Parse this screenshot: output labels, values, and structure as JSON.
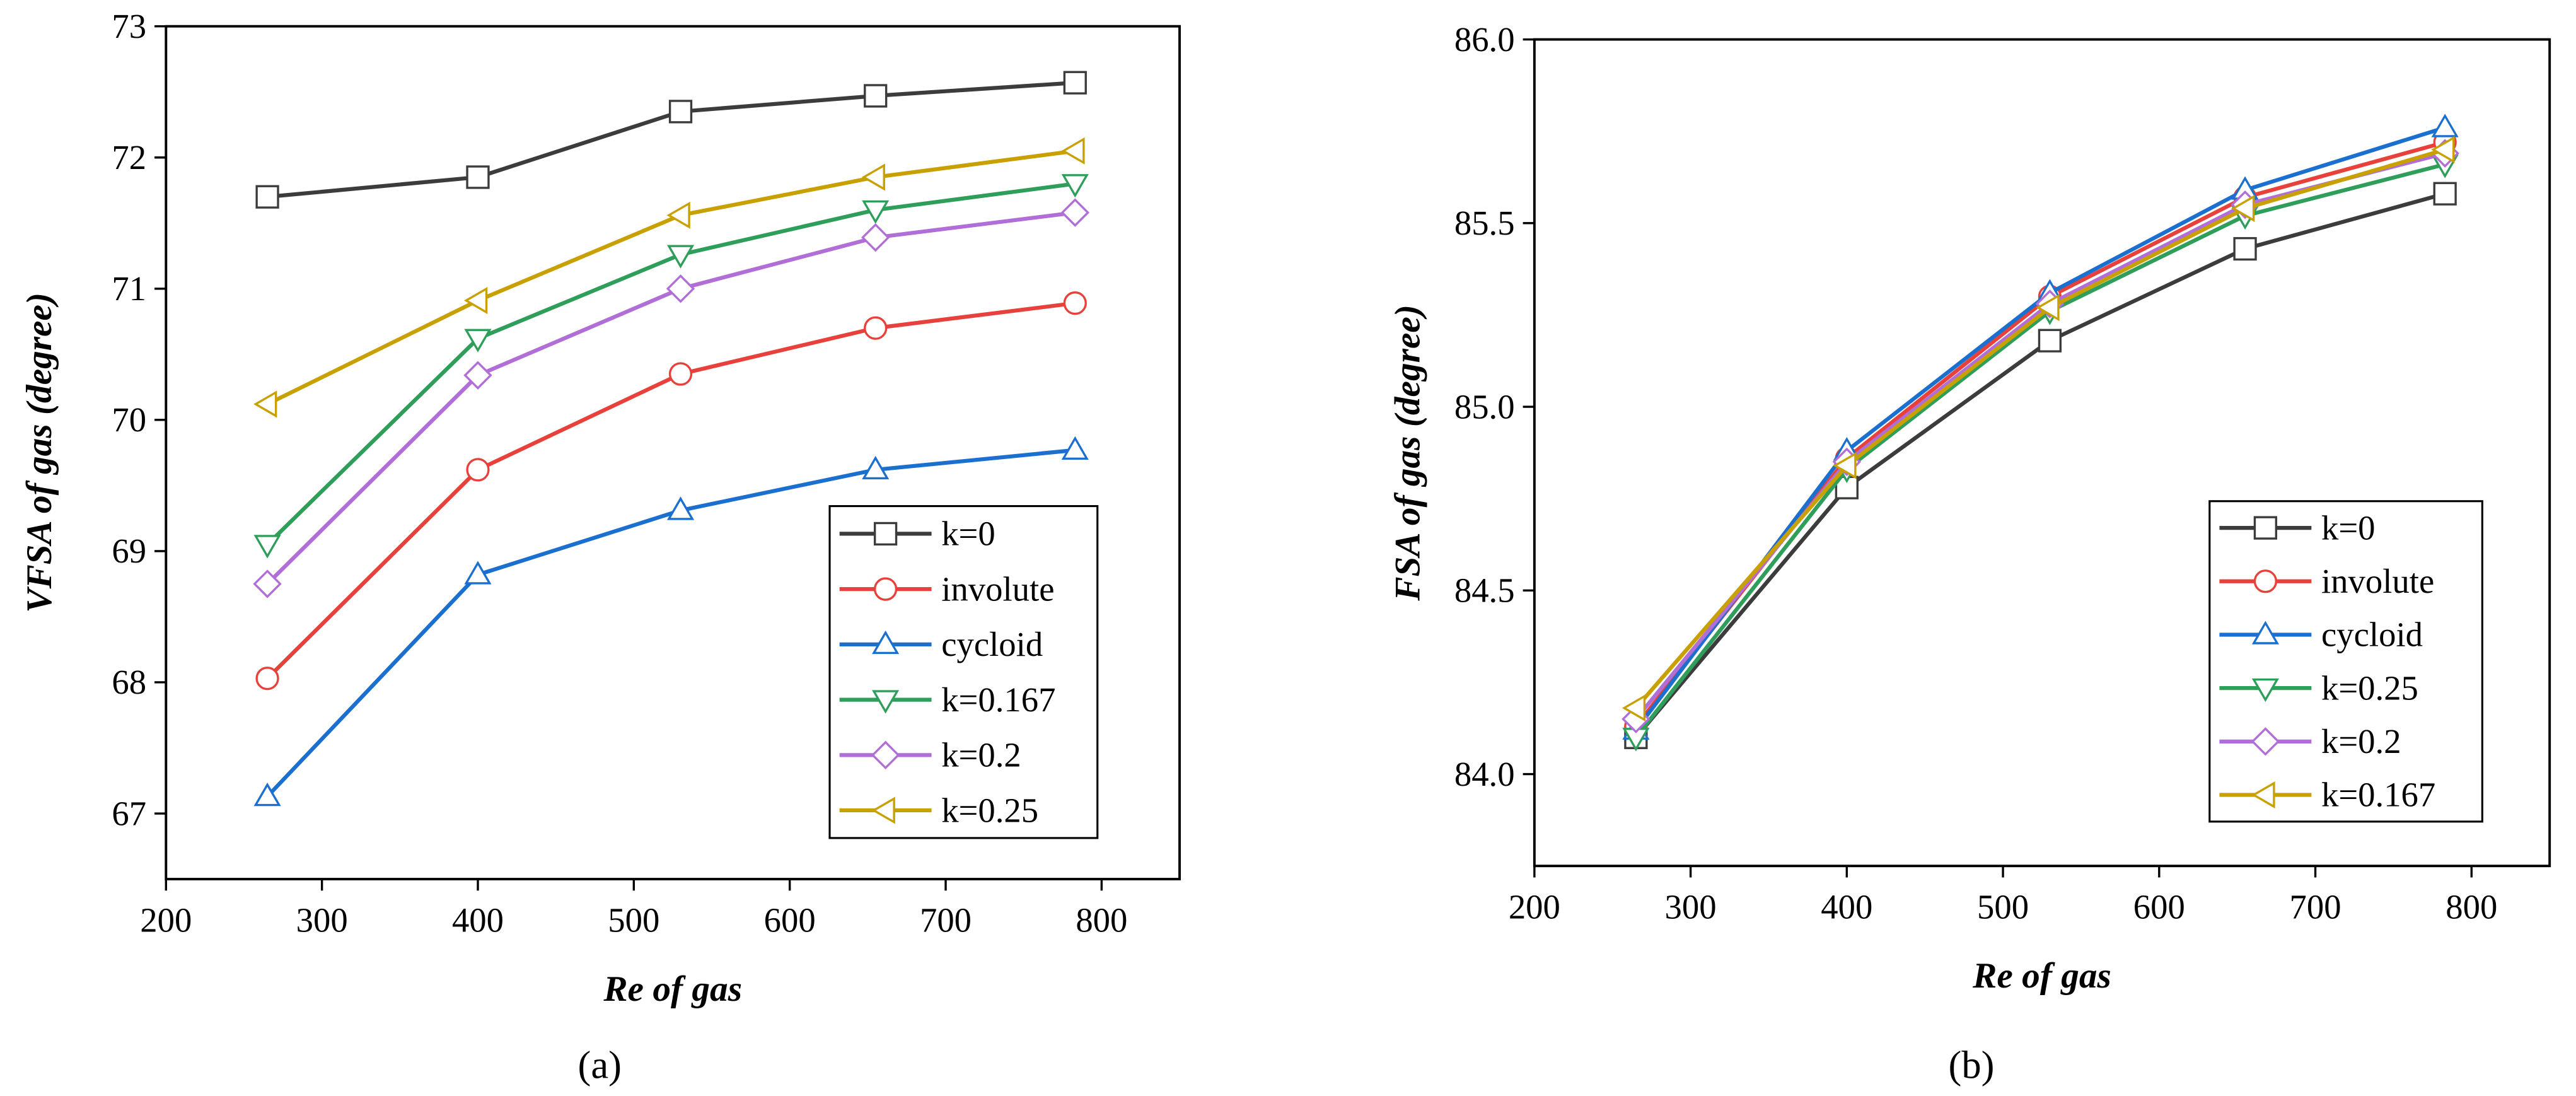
{
  "chart_data": [
    {
      "type": "line",
      "caption": "(a)",
      "xlabel": "Re of gas",
      "ylabel": "VFSA of gas (degree)",
      "x": [
        265,
        400,
        530,
        655,
        783
      ],
      "xlim": [
        200,
        850
      ],
      "xticks": [
        200,
        300,
        400,
        500,
        600,
        700,
        800
      ],
      "ylim": [
        66.5,
        73
      ],
      "yticks": [
        67,
        68,
        69,
        70,
        71,
        72,
        73
      ],
      "legend": "lower right",
      "series": [
        {
          "name": "k=0",
          "color": "#3c3c3c",
          "marker": "square",
          "values": [
            71.7,
            71.85,
            72.35,
            72.47,
            72.57
          ]
        },
        {
          "name": "involute",
          "color": "#e8413b",
          "marker": "circle",
          "values": [
            68.03,
            69.62,
            70.35,
            70.7,
            70.89
          ]
        },
        {
          "name": "cycloid",
          "color": "#1a6fcf",
          "marker": "triangle-up",
          "values": [
            67.13,
            68.82,
            69.31,
            69.62,
            69.77
          ]
        },
        {
          "name": "k=0.167",
          "color": "#2e9e5a",
          "marker": "triangle-down",
          "values": [
            69.05,
            70.62,
            71.26,
            71.6,
            71.8
          ]
        },
        {
          "name": "k=0.2",
          "color": "#b06ed6",
          "marker": "diamond",
          "values": [
            68.75,
            70.34,
            71.0,
            71.39,
            71.58
          ]
        },
        {
          "name": "k=0.25",
          "color": "#c8a000",
          "marker": "triangle-left",
          "values": [
            70.12,
            70.91,
            71.56,
            71.85,
            72.05
          ]
        }
      ]
    },
    {
      "type": "line",
      "caption": "(b)",
      "xlabel": "Re of gas",
      "ylabel": "FSA of gas (degree)",
      "x": [
        265,
        400,
        530,
        655,
        783
      ],
      "xlim": [
        200,
        850
      ],
      "xticks": [
        200,
        300,
        400,
        500,
        600,
        700,
        800
      ],
      "ylim": [
        83.75,
        86.0
      ],
      "yticks": [
        {
          "value": 84,
          "label": "84.0"
        },
        84.5,
        {
          "value": 85,
          "label": "85.0"
        },
        85.5,
        {
          "value": 86,
          "label": "86.0"
        }
      ],
      "legend": "lower right",
      "series": [
        {
          "name": "k=0",
          "color": "#3c3c3c",
          "marker": "square",
          "values": [
            84.1,
            84.78,
            85.18,
            85.43,
            85.58
          ]
        },
        {
          "name": "involute",
          "color": "#e8413b",
          "marker": "circle",
          "values": [
            84.13,
            84.86,
            85.3,
            85.57,
            85.72
          ]
        },
        {
          "name": "cycloid",
          "color": "#1a6fcf",
          "marker": "triangle-up",
          "values": [
            84.12,
            84.88,
            85.31,
            85.59,
            85.76
          ]
        },
        {
          "name": "k=0.25",
          "color": "#2e9e5a",
          "marker": "triangle-down",
          "values": [
            84.1,
            84.83,
            85.26,
            85.52,
            85.66
          ]
        },
        {
          "name": "k=0.2",
          "color": "#b06ed6",
          "marker": "diamond",
          "values": [
            84.15,
            84.85,
            85.28,
            85.55,
            85.69
          ]
        },
        {
          "name": "k=0.167",
          "color": "#c8a000",
          "marker": "triangle-left",
          "values": [
            84.18,
            84.84,
            85.27,
            85.54,
            85.7
          ]
        }
      ]
    }
  ]
}
